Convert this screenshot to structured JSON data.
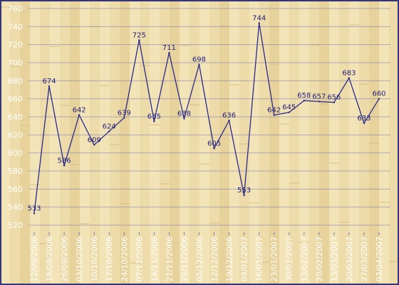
{
  "colors": {
    "frame": "#35357a",
    "plank_light": "#f3e3b8",
    "plank_dark": "#e6cf98",
    "grid": "#7a78b0",
    "line": "#2a2a8a",
    "tick_text": "#ffffff",
    "label_text": "#1f1d7a"
  },
  "chart_data": {
    "type": "line",
    "title": "",
    "xlabel": "",
    "ylabel": "",
    "ylim": [
      520,
      760
    ],
    "yticks": [
      520,
      540,
      560,
      580,
      600,
      620,
      640,
      660,
      680,
      700,
      720,
      740,
      760
    ],
    "grid": true,
    "x_tick_labels": [
      "12/09/2006",
      "19/09/2006",
      "26/09/2006",
      "03/10/2006",
      "10/10/2006",
      "17/10/2006",
      "24/10/2006",
      "07/11/2006",
      "14/11/2006",
      "21/11/2006",
      "28/11/2006",
      "05/12/2006",
      "12/12/2006",
      "19/12/2006",
      "09/01/2007",
      "16/01/2007",
      "23/01/2007",
      "30/01/2007",
      "13/02/2007",
      "20/02/2007",
      "13/03/2007",
      "20/03/2007",
      "27/03/2007",
      "03/04/2007"
    ],
    "points": [
      {
        "x": "12/09/2006",
        "y": 533,
        "label": "533"
      },
      {
        "x": "19/09/2006",
        "y": 674,
        "label": "674"
      },
      {
        "x": "26/09/2006",
        "y": 586,
        "label": "586"
      },
      {
        "x": "03/10/2006",
        "y": 642,
        "label": "642"
      },
      {
        "x": "10/10/2006",
        "y": 609,
        "label": "609"
      },
      {
        "x": "17/10/2006",
        "y": 624,
        "label": "624"
      },
      {
        "x": "24/10/2006",
        "y": 639,
        "label": "639"
      },
      {
        "x": "07/11/2006",
        "y": 725,
        "label": "725"
      },
      {
        "x": "14/11/2006",
        "y": 635,
        "label": "635"
      },
      {
        "x": "21/11/2006",
        "y": 711,
        "label": "711"
      },
      {
        "x": "28/11/2006",
        "y": 638,
        "label": "638"
      },
      {
        "x": "05/12/2006",
        "y": 698,
        "label": "698"
      },
      {
        "x": "12/12/2006",
        "y": 605,
        "label": "605"
      },
      {
        "x": "19/12/2006",
        "y": 636,
        "label": "636"
      },
      {
        "x": "09/01/2007",
        "y": 553,
        "label": "553"
      },
      {
        "x": "16/01/2007",
        "y": 744,
        "label": "744"
      },
      {
        "x": "23/01/2007",
        "y": 642,
        "label": "642"
      },
      {
        "x": "30/01/2007",
        "y": 645,
        "label": "645"
      },
      {
        "x": "13/02/2007",
        "y": 658,
        "label": "658"
      },
      {
        "x": "20/02/2007",
        "y": 657,
        "label": "657"
      },
      {
        "x": "13/03/2007",
        "y": 656,
        "label": "656"
      },
      {
        "x": "20/03/2007",
        "y": 683,
        "label": "683"
      },
      {
        "x": "27/03/2007",
        "y": 633,
        "label": "633"
      },
      {
        "x": "03/04/2007",
        "y": 660,
        "label": "660"
      }
    ]
  }
}
